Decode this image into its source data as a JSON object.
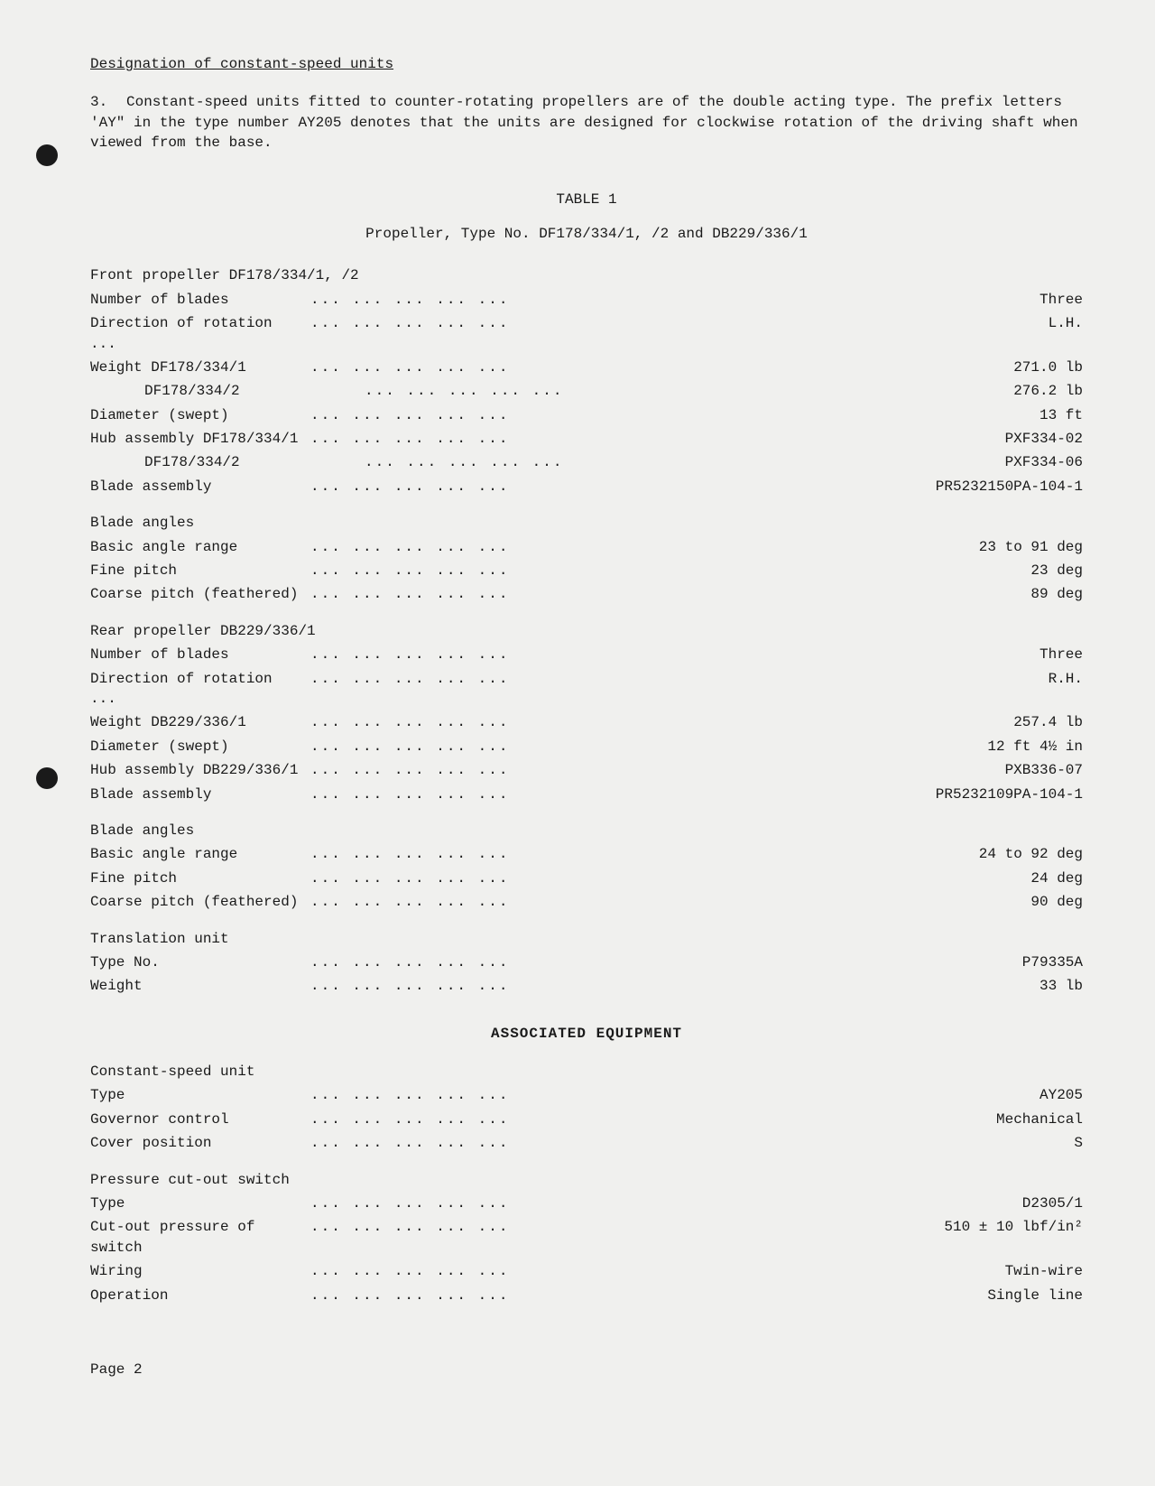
{
  "heading": "Designation of constant-speed units",
  "para_num": "3.",
  "para_text": "Constant-speed units fitted to counter-rotating propellers are of the double acting type. The prefix letters 'AY\" in the type number AY205 denotes that the units are designed for clockwise rotation of the driving shaft when viewed from the base.",
  "table_label": "TABLE 1",
  "table_subtitle": "Propeller, Type No. DF178/334/1, /2 and DB229/336/1",
  "front": {
    "title": "Front propeller DF178/334/1, /2",
    "rows": [
      {
        "label": "Number of blades",
        "value": "Three"
      },
      {
        "label": "Direction of rotation ...",
        "value": "L.H."
      },
      {
        "label": "Weight DF178/334/1",
        "value": "271.0 lb"
      },
      {
        "label_indent": "DF178/334/2",
        "value": "276.2 lb"
      },
      {
        "label": "Diameter (swept)",
        "value": "13 ft"
      },
      {
        "label": "Hub assembly DF178/334/1",
        "value": "PXF334-02"
      },
      {
        "label_indent": "DF178/334/2",
        "value": "PXF334-06"
      },
      {
        "label": "Blade assembly",
        "value": "PR5232150PA-104-1"
      }
    ]
  },
  "front_angles": {
    "title": "Blade angles",
    "rows": [
      {
        "label": "Basic angle range",
        "value": "23 to 91 deg"
      },
      {
        "label": "Fine pitch",
        "value": "23 deg"
      },
      {
        "label": "Coarse pitch (feathered)",
        "value": "89 deg"
      }
    ]
  },
  "rear": {
    "title": "Rear propeller DB229/336/1",
    "rows": [
      {
        "label": "Number of blades",
        "value": "Three"
      },
      {
        "label": "Direction of rotation ...",
        "value": "R.H."
      },
      {
        "label": "Weight DB229/336/1",
        "value": "257.4 lb"
      },
      {
        "label": "Diameter (swept)",
        "value": "12 ft 4½ in"
      },
      {
        "label": "Hub assembly DB229/336/1",
        "value": "PXB336-07"
      },
      {
        "label": "Blade assembly",
        "value": "PR5232109PA-104-1"
      }
    ]
  },
  "rear_angles": {
    "title": "Blade angles",
    "rows": [
      {
        "label": "Basic angle range",
        "value": "24 to 92 deg"
      },
      {
        "label": "Fine pitch",
        "value": "24 deg"
      },
      {
        "label": "Coarse pitch (feathered)",
        "value": "90 deg"
      }
    ]
  },
  "translation": {
    "title": "Translation unit",
    "rows": [
      {
        "label": "Type No.",
        "value": "P79335A"
      },
      {
        "label": "Weight",
        "value": "33 lb"
      }
    ]
  },
  "assoc_title": "ASSOCIATED EQUIPMENT",
  "csu": {
    "title": "Constant-speed unit",
    "rows": [
      {
        "label": "Type",
        "value": "AY205"
      },
      {
        "label": "Governor control",
        "value": "Mechanical"
      },
      {
        "label": "Cover position",
        "value": "S"
      }
    ]
  },
  "pressure": {
    "title": "Pressure cut-out switch",
    "rows": [
      {
        "label": "Type",
        "value": "D2305/1"
      },
      {
        "label": "Cut-out pressure of switch",
        "value": "510 ± 10 lbf/in²"
      },
      {
        "label": "Wiring",
        "value": "Twin-wire"
      },
      {
        "label": "Operation",
        "value": "Single line"
      }
    ]
  },
  "page_num": "Page 2",
  "dot_fill": "...   ...   ...   ...   ..."
}
